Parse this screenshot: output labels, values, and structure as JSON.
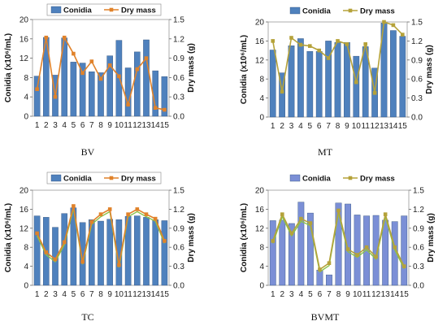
{
  "figure": {
    "legend": {
      "bar_label": "Conidia",
      "line_label": "Dry mass"
    },
    "y_left_label": "Conidia (x10⁶/mL)",
    "y_right_label": "Dry mass (g)"
  },
  "chart_data": [
    {
      "type": "bar",
      "name": "BV",
      "categories": [
        "1",
        "2",
        "3",
        "4",
        "5",
        "6",
        "7",
        "8",
        "9",
        "10",
        "11",
        "12",
        "13",
        "14",
        "15"
      ],
      "ylim": [
        0,
        20
      ],
      "yticks": [
        0,
        4,
        8,
        12,
        16,
        20
      ],
      "y2lim": [
        0,
        1.5
      ],
      "y2ticks": [
        "0.0",
        "0.3",
        "0.6",
        "0.9",
        "1.2",
        "1.5"
      ],
      "colors": {
        "bar": "#4f81bd",
        "line": "#e0822a",
        "marker": "#e0822a"
      },
      "legend_style": "boxed",
      "series": [
        {
          "name": "Conidia",
          "axis": "left",
          "values": [
            8.3,
            16.3,
            8.5,
            16.2,
            11.2,
            11.0,
            9.2,
            9.0,
            12.5,
            15.7,
            10.0,
            13.3,
            15.8,
            9.4,
            8.2
          ]
        },
        {
          "name": "Dry mass",
          "axis": "right",
          "values": [
            0.42,
            1.22,
            0.3,
            1.22,
            0.97,
            0.67,
            0.85,
            0.58,
            0.79,
            0.62,
            0.18,
            0.73,
            0.9,
            0.13,
            0.1
          ]
        }
      ]
    },
    {
      "type": "bar",
      "name": "MT",
      "categories": [
        "1",
        "2",
        "3",
        "4",
        "5",
        "6",
        "7",
        "8",
        "9",
        "10",
        "11",
        "12",
        "13",
        "14",
        "15"
      ],
      "ylim": [
        0,
        20
      ],
      "yticks": [
        0,
        4,
        8,
        12,
        16,
        20
      ],
      "y2lim": [
        0,
        1.5
      ],
      "y2ticks": [
        "0.0",
        "0.3",
        "0.6",
        "0.9",
        "1.2",
        "1.5"
      ],
      "colors": {
        "bar": "#4f81bd",
        "line": "#b5a23a",
        "marker": "#b5a23a"
      },
      "legend_style": "plain",
      "series": [
        {
          "name": "Conidia",
          "axis": "left",
          "values": [
            14.1,
            9.3,
            15.0,
            16.5,
            13.8,
            13.8,
            16.0,
            15.7,
            15.7,
            12.8,
            14.8,
            10.3,
            19.8,
            18.2,
            17.0
          ]
        },
        {
          "name": "Dry mass",
          "axis": "right",
          "values": [
            1.2,
            0.4,
            1.25,
            1.14,
            1.12,
            1.05,
            0.93,
            1.2,
            1.15,
            0.55,
            1.15,
            0.38,
            1.5,
            1.45,
            1.3
          ]
        }
      ]
    },
    {
      "type": "bar",
      "name": "TC",
      "categories": [
        "1",
        "2",
        "3",
        "4",
        "5",
        "6",
        "7",
        "8",
        "9",
        "10",
        "11",
        "12",
        "13",
        "14",
        "15"
      ],
      "ylim": [
        0,
        20
      ],
      "yticks": [
        0,
        4,
        8,
        12,
        16,
        20
      ],
      "y2lim": [
        0,
        1.5
      ],
      "y2ticks": [
        "0.0",
        "0.3",
        "0.6",
        "0.9",
        "1.2",
        "1.5"
      ],
      "colors": {
        "bar": "#4f81bd",
        "line": "#e0822a",
        "marker": "#e0822a",
        "line2": "#8bc24a"
      },
      "legend_style": "boxed",
      "series": [
        {
          "name": "Conidia",
          "axis": "left",
          "values": [
            14.6,
            14.3,
            12.2,
            15.1,
            16.3,
            13.2,
            13.8,
            13.5,
            13.9,
            13.8,
            14.5,
            14.6,
            14.3,
            13.8,
            13.6
          ]
        },
        {
          "name": "Dry mass",
          "axis": "right",
          "values": [
            0.82,
            0.52,
            0.41,
            0.68,
            1.25,
            0.37,
            1.0,
            1.12,
            1.2,
            0.32,
            1.12,
            1.2,
            1.12,
            1.05,
            0.7
          ]
        }
      ]
    },
    {
      "type": "bar",
      "name": "BVMT",
      "categories": [
        "1",
        "2",
        "3",
        "4",
        "5",
        "6",
        "7",
        "8",
        "9",
        "10",
        "11",
        "12",
        "13",
        "14",
        "15"
      ],
      "ylim": [
        0,
        20
      ],
      "yticks": [
        0,
        4,
        8,
        12,
        16,
        20
      ],
      "y2lim": [
        0,
        1.5
      ],
      "y2ticks": [
        "0.0",
        "0.3",
        "0.6",
        "0.9",
        "1.2",
        "1.5"
      ],
      "colors": {
        "bar": "#7b8fd6",
        "line": "#b5a23a",
        "marker": "#b5a23a",
        "line2": "#8bc24a"
      },
      "legend_style": "plain",
      "series": [
        {
          "name": "Conidia",
          "axis": "left",
          "values": [
            13.6,
            13.7,
            13.0,
            17.5,
            15.2,
            3.2,
            2.2,
            17.3,
            17.1,
            14.8,
            14.6,
            14.7,
            13.7,
            13.4,
            14.6
          ]
        },
        {
          "name": "Dry mass",
          "axis": "right",
          "values": [
            0.7,
            1.12,
            0.82,
            1.05,
            0.98,
            0.25,
            0.35,
            1.18,
            0.57,
            0.48,
            0.6,
            0.45,
            1.12,
            0.6,
            0.3
          ]
        }
      ]
    }
  ]
}
